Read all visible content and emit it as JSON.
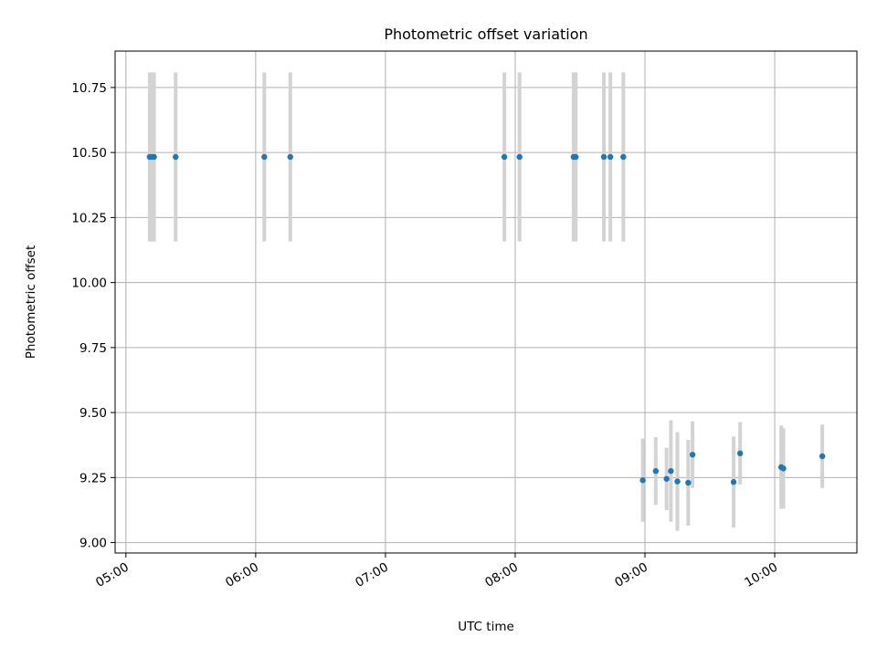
{
  "chart_data": {
    "type": "scatter",
    "title": "Photometric offset variation",
    "xlabel": "UTC time",
    "ylabel": "Photometric offset",
    "xlim": [
      "04:55",
      "10:38"
    ],
    "ylim": [
      8.96,
      10.89
    ],
    "grid": true,
    "xticks": [
      "05:00",
      "06:00",
      "07:00",
      "08:00",
      "09:00",
      "10:00"
    ],
    "yticks": [
      "9.00",
      "9.25",
      "9.50",
      "9.75",
      "10.00",
      "10.25",
      "10.50",
      "10.75"
    ],
    "colors": {
      "point": "#1f77b4",
      "errorbar": "#d3d3d3"
    },
    "points": [
      {
        "time": "05:11",
        "y": 10.483,
        "err": 0.325
      },
      {
        "time": "05:12",
        "y": 10.483,
        "err": 0.325
      },
      {
        "time": "05:13",
        "y": 10.483,
        "err": 0.325
      },
      {
        "time": "05:23",
        "y": 10.483,
        "err": 0.325
      },
      {
        "time": "06:04",
        "y": 10.483,
        "err": 0.325
      },
      {
        "time": "06:16",
        "y": 10.483,
        "err": 0.325
      },
      {
        "time": "07:55",
        "y": 10.483,
        "err": 0.325
      },
      {
        "time": "08:02",
        "y": 10.483,
        "err": 0.325
      },
      {
        "time": "08:27",
        "y": 10.483,
        "err": 0.325
      },
      {
        "time": "08:28",
        "y": 10.483,
        "err": 0.325
      },
      {
        "time": "08:41",
        "y": 10.483,
        "err": 0.325
      },
      {
        "time": "08:44",
        "y": 10.483,
        "err": 0.325
      },
      {
        "time": "08:50",
        "y": 10.483,
        "err": 0.325
      },
      {
        "time": "08:59",
        "y": 9.24,
        "err": 0.16
      },
      {
        "time": "09:05",
        "y": 9.275,
        "err": 0.13
      },
      {
        "time": "09:10",
        "y": 9.245,
        "err": 0.12
      },
      {
        "time": "09:12",
        "y": 9.275,
        "err": 0.195
      },
      {
        "time": "09:15",
        "y": 9.235,
        "err": 0.19
      },
      {
        "time": "09:20",
        "y": 9.23,
        "err": 0.165
      },
      {
        "time": "09:22",
        "y": 9.338,
        "err": 0.128
      },
      {
        "time": "09:41",
        "y": 9.233,
        "err": 0.175
      },
      {
        "time": "09:44",
        "y": 9.343,
        "err": 0.12
      },
      {
        "time": "10:03",
        "y": 9.29,
        "err": 0.16
      },
      {
        "time": "10:04",
        "y": 9.285,
        "err": 0.155
      },
      {
        "time": "10:22",
        "y": 9.332,
        "err": 0.122
      }
    ]
  }
}
